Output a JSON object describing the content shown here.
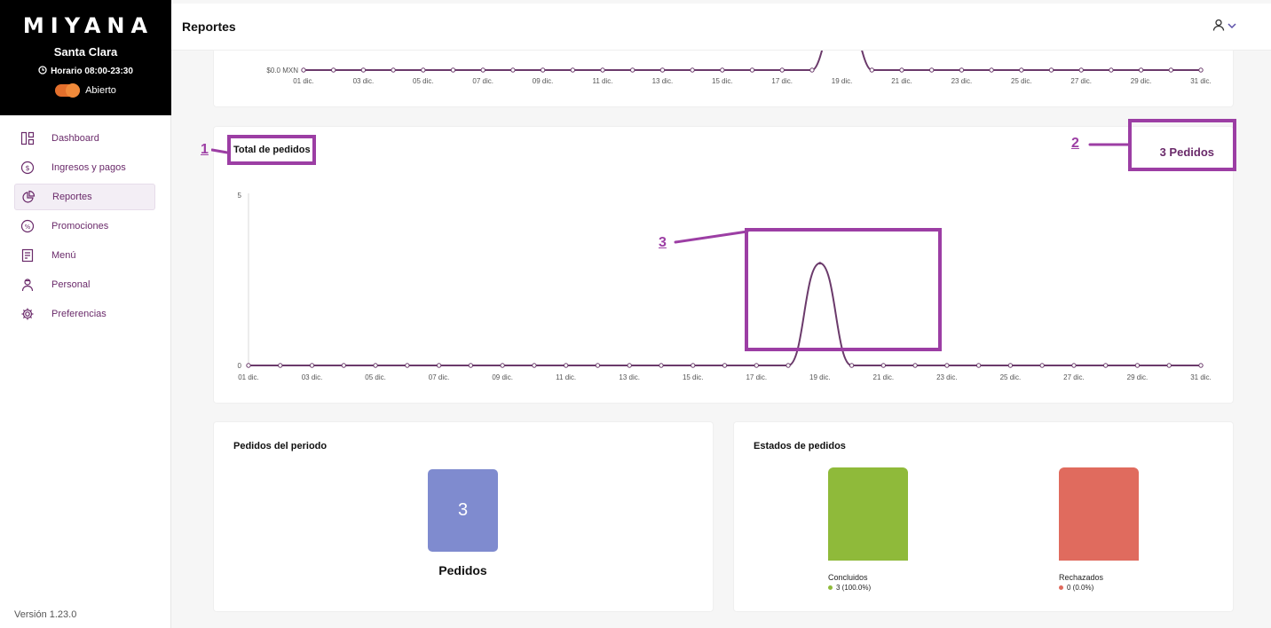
{
  "sidebar": {
    "logo": "MIYANA",
    "store_name": "Santa Clara",
    "hours": "Horario 08:00-23:30",
    "status": "Abierto",
    "items": [
      {
        "label": "Dashboard",
        "icon": "dashboard-icon"
      },
      {
        "label": "Ingresos y pagos",
        "icon": "dollar-coin-icon"
      },
      {
        "label": "Reportes",
        "icon": "pie-chart-icon",
        "active": true
      },
      {
        "label": "Promociones",
        "icon": "percent-icon"
      },
      {
        "label": "Menú",
        "icon": "menu-book-icon"
      },
      {
        "label": "Personal",
        "icon": "staff-icon"
      },
      {
        "label": "Preferencias",
        "icon": "gear-icon"
      }
    ],
    "version": "Versión 1.23.0"
  },
  "header": {
    "title": "Reportes"
  },
  "colors": {
    "accent": "#9c3ea4",
    "line": "#6b3a6b",
    "tile": "#7f8bcf",
    "concluidos": "#8fba3a",
    "rechazados": "#e06b5e"
  },
  "annotations": [
    "1",
    "2",
    "3"
  ],
  "sales_chart": {
    "y_label": "$0.0 MXN",
    "x_ticks": [
      "01 dic.",
      "03 dic.",
      "05 dic.",
      "07 dic.",
      "09 dic.",
      "11 dic.",
      "13 dic.",
      "15 dic.",
      "17 dic.",
      "19 dic.",
      "21 dic.",
      "23 dic.",
      "25 dic.",
      "27 dic.",
      "29 dic.",
      "31 dic."
    ]
  },
  "orders_card": {
    "title": "Total de pedidos",
    "total": "3 Pedidos"
  },
  "chart_data": [
    {
      "type": "line",
      "x": [
        "01 dic.",
        "02 dic.",
        "03 dic.",
        "04 dic.",
        "05 dic.",
        "06 dic.",
        "07 dic.",
        "08 dic.",
        "09 dic.",
        "10 dic.",
        "11 dic.",
        "12 dic.",
        "13 dic.",
        "14 dic.",
        "15 dic.",
        "16 dic.",
        "17 dic.",
        "18 dic.",
        "19 dic.",
        "20 dic.",
        "21 dic.",
        "22 dic.",
        "23 dic.",
        "24 dic.",
        "25 dic.",
        "26 dic.",
        "27 dic.",
        "28 dic.",
        "29 dic.",
        "30 dic.",
        "31 dic."
      ],
      "x_ticks": [
        "01 dic.",
        "03 dic.",
        "05 dic.",
        "07 dic.",
        "09 dic.",
        "11 dic.",
        "13 dic.",
        "15 dic.",
        "17 dic.",
        "19 dic.",
        "21 dic.",
        "23 dic.",
        "25 dic.",
        "27 dic.",
        "29 dic.",
        "31 dic."
      ],
      "series": [
        {
          "values": [
            0,
            0,
            0,
            0,
            0,
            0,
            0,
            0,
            0,
            0,
            0,
            0,
            0,
            0,
            0,
            0,
            0,
            0,
            3,
            0,
            0,
            0,
            0,
            0,
            0,
            0,
            0,
            0,
            0,
            0,
            0
          ]
        }
      ],
      "y_ticks": [
        "0",
        "5"
      ],
      "ylim": [
        0,
        5
      ],
      "title": "Total de pedidos"
    }
  ],
  "period": {
    "title": "Pedidos del periodo",
    "count": "3",
    "label": "Pedidos"
  },
  "states": {
    "title": "Estados de pedidos",
    "items": [
      {
        "name": "Concluidos",
        "value": "3 (100.0%)"
      },
      {
        "name": "Rechazados",
        "value": "0 (0.0%)"
      }
    ]
  }
}
